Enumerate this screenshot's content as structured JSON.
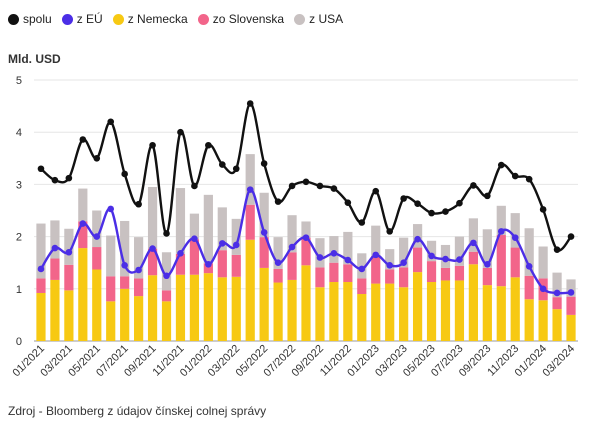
{
  "chart_data": {
    "type": "bar",
    "stacked": true,
    "title": "",
    "ylabel": "Mld. USD",
    "xlabel": "",
    "ylim": [
      0,
      5
    ],
    "yticks": [
      0,
      1,
      2,
      3,
      4,
      5
    ],
    "categories": [
      "01/2021",
      "02/2021",
      "03/2021",
      "04/2021",
      "05/2021",
      "06/2021",
      "07/2021",
      "08/2021",
      "09/2021",
      "10/2021",
      "11/2021",
      "12/2021",
      "01/2022",
      "02/2022",
      "03/2022",
      "04/2022",
      "05/2022",
      "06/2022",
      "07/2022",
      "08/2022",
      "09/2022",
      "10/2022",
      "11/2022",
      "12/2022",
      "01/2023",
      "02/2023",
      "03/2023",
      "04/2023",
      "05/2023",
      "06/2023",
      "07/2023",
      "08/2023",
      "09/2023",
      "10/2023",
      "11/2023",
      "12/2023",
      "01/2024",
      "02/2024",
      "03/2024"
    ],
    "xtick_labels": [
      "01/2021",
      "03/2021",
      "05/2021",
      "07/2021",
      "09/2021",
      "11/2021",
      "01/2022",
      "03/2022",
      "05/2022",
      "07/2022",
      "09/2022",
      "11/2022",
      "01/2023",
      "03/2023",
      "05/2023",
      "07/2023",
      "09/2023",
      "11/2023",
      "01/2024",
      "03/2024"
    ],
    "series": [
      {
        "name": "z Nemecka",
        "kind": "bar",
        "color": "#f7c913",
        "values": [
          0.92,
          1.17,
          0.97,
          1.78,
          1.37,
          0.76,
          1.0,
          0.86,
          1.26,
          0.76,
          1.27,
          1.27,
          1.3,
          1.22,
          1.23,
          1.94,
          1.4,
          1.12,
          1.17,
          1.45,
          1.03,
          1.13,
          1.13,
          0.9,
          1.1,
          1.1,
          1.03,
          1.32,
          1.13,
          1.16,
          1.16,
          1.47,
          1.07,
          1.05,
          1.22,
          0.8,
          0.78,
          0.61,
          0.5
        ]
      },
      {
        "name": "zo Slovenska",
        "kind": "bar",
        "color": "#f2658a",
        "values": [
          0.28,
          0.41,
          0.49,
          0.51,
          0.43,
          0.48,
          0.24,
          0.34,
          0.51,
          0.21,
          0.4,
          0.68,
          0.19,
          0.52,
          0.42,
          0.67,
          0.59,
          0.26,
          0.53,
          0.53,
          0.38,
          0.37,
          0.34,
          0.3,
          0.53,
          0.27,
          0.38,
          0.47,
          0.4,
          0.24,
          0.28,
          0.24,
          0.33,
          0.98,
          0.57,
          0.45,
          0.42,
          0.23,
          0.35
        ]
      },
      {
        "name": "z USA",
        "kind": "bar",
        "color": "#c8c1c1",
        "values": [
          1.05,
          0.73,
          0.69,
          0.63,
          0.7,
          0.78,
          1.06,
          0.79,
          1.18,
          0.73,
          1.26,
          0.49,
          1.31,
          0.82,
          0.69,
          0.97,
          0.85,
          0.61,
          0.71,
          0.31,
          0.56,
          0.51,
          0.62,
          0.48,
          0.58,
          0.39,
          0.57,
          0.45,
          0.39,
          0.44,
          0.56,
          0.64,
          0.74,
          0.56,
          0.66,
          0.91,
          0.61,
          0.47,
          0.33
        ]
      },
      {
        "name": "z EÚ",
        "kind": "line",
        "color": "#4b2ee6",
        "values": [
          1.38,
          1.78,
          1.7,
          2.25,
          2.0,
          2.53,
          1.45,
          1.36,
          1.77,
          1.25,
          1.68,
          1.96,
          1.47,
          1.87,
          1.84,
          2.9,
          2.08,
          1.5,
          1.8,
          1.98,
          1.6,
          1.68,
          1.55,
          1.38,
          1.65,
          1.45,
          1.5,
          1.95,
          1.63,
          1.57,
          1.56,
          1.88,
          1.47,
          2.1,
          1.98,
          1.43,
          1.0,
          0.92,
          0.93
        ]
      },
      {
        "name": "spolu",
        "kind": "line",
        "color": "#111111",
        "values": [
          3.3,
          3.08,
          3.12,
          3.86,
          3.5,
          4.2,
          3.2,
          2.62,
          3.75,
          2.06,
          4.0,
          2.97,
          3.75,
          3.38,
          3.3,
          4.55,
          3.4,
          2.67,
          2.97,
          3.05,
          2.97,
          2.92,
          2.65,
          2.27,
          2.87,
          2.1,
          2.73,
          2.63,
          2.45,
          2.48,
          2.64,
          2.98,
          2.78,
          3.37,
          3.16,
          3.1,
          2.52,
          1.75,
          2.0
        ]
      }
    ]
  },
  "legend": {
    "items": [
      {
        "label": "spolu",
        "color": "#111111"
      },
      {
        "label": "z EÚ",
        "color": "#4b2ee6"
      },
      {
        "label": "z Nemecka",
        "color": "#f7c913"
      },
      {
        "label": "zo Slovenska",
        "color": "#f2658a"
      },
      {
        "label": "z USA",
        "color": "#c8c1c1"
      }
    ]
  },
  "unit_label": "Mld. USD",
  "source": "Zdroj - Bloomberg z údajov čínskej colnej správy"
}
